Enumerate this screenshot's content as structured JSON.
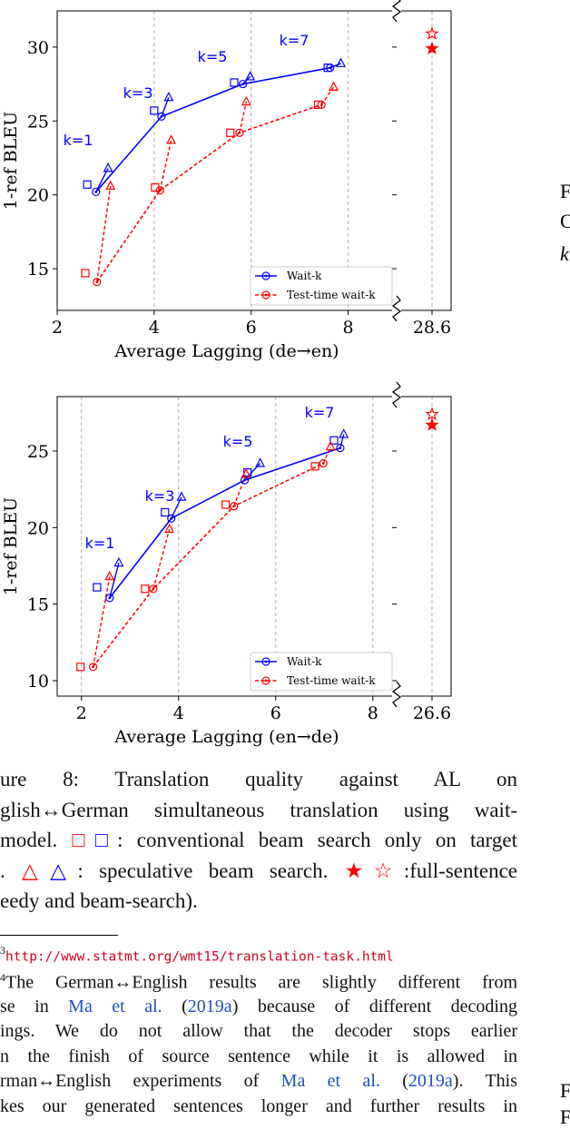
{
  "chart_data": [
    {
      "type": "line",
      "xlabel": "Average Lagging (de→en)",
      "ylabel": "1-ref BLEU",
      "xlim": [
        2,
        9
      ],
      "xticks": [
        2,
        4,
        6,
        8
      ],
      "ylim": [
        12.18,
        32.45
      ],
      "yticks": [
        15,
        20,
        25,
        30
      ],
      "x_break": {
        "xlim": [
          27.95,
          28.95
        ],
        "xticks": [
          28.6
        ]
      },
      "grid": "x",
      "legend": "lower right",
      "annotations": [
        "k=1",
        "k=3",
        "k=5",
        "k=7"
      ],
      "series": [
        {
          "name": "Wait-k",
          "color": "#0000ff",
          "marker": "circle",
          "linestyle": "solid",
          "x": [
            2.8,
            4.15,
            5.83,
            7.63
          ],
          "values": [
            20.2,
            25.3,
            27.5,
            28.6
          ]
        },
        {
          "name": "Test-time wait-k",
          "color": "#ff0000",
          "marker": "circle",
          "linestyle": "dashed",
          "x": [
            2.82,
            4.12,
            5.76,
            7.45
          ],
          "values": [
            14.1,
            20.3,
            24.2,
            26.1
          ]
        },
        {
          "color": "#0000ff",
          "marker": "square",
          "x": [
            2.62,
            4.0,
            5.65,
            7.58
          ],
          "values": [
            20.7,
            25.7,
            27.6,
            28.6
          ]
        },
        {
          "color": "#ff0000",
          "marker": "square",
          "x": [
            2.58,
            4.02,
            5.57,
            7.38
          ],
          "values": [
            14.7,
            20.5,
            24.2,
            26.1
          ]
        },
        {
          "color": "#0000ff",
          "marker": "triangle",
          "x": [
            3.05,
            4.3,
            5.98,
            7.85
          ],
          "values": [
            21.8,
            26.6,
            28.0,
            28.9
          ]
        },
        {
          "color": "#ff0000",
          "marker": "triangle",
          "x": [
            3.1,
            4.35,
            5.9,
            7.7
          ],
          "values": [
            20.6,
            23.7,
            26.3,
            27.3
          ]
        },
        {
          "color": "#ff0000",
          "marker": "star",
          "xaxis": "break",
          "x": [
            28.6
          ],
          "values": [
            29.9
          ]
        },
        {
          "color": "#ff0000",
          "marker": "star-open",
          "xaxis": "break",
          "x": [
            28.6
          ],
          "values": [
            30.9
          ]
        }
      ]
    },
    {
      "type": "line",
      "xlabel": "Average Lagging (en→de)",
      "ylabel": "1-ref BLEU",
      "xlim": [
        1.5,
        8.49
      ],
      "xticks": [
        2,
        4,
        6,
        8
      ],
      "ylim": [
        8.99,
        28.56
      ],
      "yticks": [
        10,
        15,
        20,
        25
      ],
      "x_break": {
        "xlim": [
          25.95,
          26.95
        ],
        "xticks": [
          26.6
        ]
      },
      "grid": "x",
      "legend": "lower right",
      "annotations": [
        "k=1",
        "k=3",
        "k=5",
        "k=7"
      ],
      "series": [
        {
          "name": "Wait-k",
          "color": "#0000ff",
          "marker": "circle",
          "linestyle": "solid",
          "x": [
            2.58,
            3.85,
            5.36,
            7.33
          ],
          "values": [
            15.4,
            20.6,
            23.1,
            25.2
          ]
        },
        {
          "name": "Test-time wait-k",
          "color": "#ff0000",
          "marker": "circle",
          "linestyle": "dashed",
          "x": [
            2.24,
            3.48,
            5.14,
            6.98
          ],
          "values": [
            10.9,
            16.0,
            21.4,
            24.2
          ]
        },
        {
          "color": "#0000ff",
          "marker": "square",
          "x": [
            2.32,
            3.72,
            5.42,
            7.2
          ],
          "values": [
            16.1,
            21.0,
            23.6,
            25.7
          ]
        },
        {
          "color": "#ff0000",
          "marker": "square",
          "x": [
            1.98,
            3.31,
            4.97,
            6.81
          ],
          "values": [
            10.9,
            16.0,
            21.5,
            24.0
          ]
        },
        {
          "color": "#0000ff",
          "marker": "triangle",
          "x": [
            2.77,
            4.06,
            5.68,
            7.4
          ],
          "values": [
            17.7,
            22.0,
            24.2,
            26.1
          ]
        },
        {
          "color": "#ff0000",
          "marker": "triangle",
          "x": [
            2.58,
            3.81,
            5.39,
            7.13
          ],
          "values": [
            16.8,
            19.9,
            23.5,
            25.3
          ]
        },
        {
          "color": "#ff0000",
          "marker": "star-open",
          "xaxis": "break",
          "x": [
            26.6
          ],
          "values": [
            27.4
          ]
        },
        {
          "color": "#ff0000",
          "marker": "star",
          "xaxis": "break",
          "x": [
            26.6
          ],
          "values": [
            26.7
          ]
        }
      ]
    }
  ],
  "caption": [
    [
      "ure 8:  Translation quality against AL on"
    ],
    [
      "glish↔German simultaneous translation using wait-"
    ],
    [
      "model. ",
      {
        "text": "□",
        "color": "#ff0000"
      },
      {
        "text": "□",
        "color": "#0000ff"
      },
      ": conventional beam search only on target"
    ],
    [
      ". ",
      {
        "text": "△",
        "color": "#ff0000"
      },
      {
        "text": "△",
        "color": "#0000ff"
      },
      ": speculative beam search. ",
      {
        "text": "★☆",
        "color": "#ff0000"
      },
      ":full-sentence"
    ],
    [
      "eedy and beam-search)."
    ]
  ],
  "footnotes": {
    "fn3": {
      "mark": "3",
      "url": "http://www.statmt.org/wmt15/translation-task.html"
    },
    "fn4": [
      [
        {
          "text": "4",
          "sup": true
        },
        "The German↔English results are slightly different from"
      ],
      [
        "se in ",
        {
          "text": "Ma et al.",
          "color": "#1f4fb5"
        },
        " (",
        {
          "text": "2019a",
          "color": "#1f4fb5"
        },
        ") because of different decoding"
      ],
      [
        "ings.  We do not allow that the decoder stops earlier"
      ],
      [
        "n the finish of source sentence while it is allowed in"
      ],
      [
        "rman↔English experiments of ",
        {
          "text": "Ma et al.",
          "color": "#1f4fb5"
        },
        " (",
        {
          "text": "2019a",
          "color": "#1f4fb5"
        },
        ").  This"
      ],
      [
        "kes our generated sentences longer and further results in"
      ]
    ]
  },
  "side_text": [
    "F",
    "C",
    "k",
    "F",
    "F"
  ]
}
